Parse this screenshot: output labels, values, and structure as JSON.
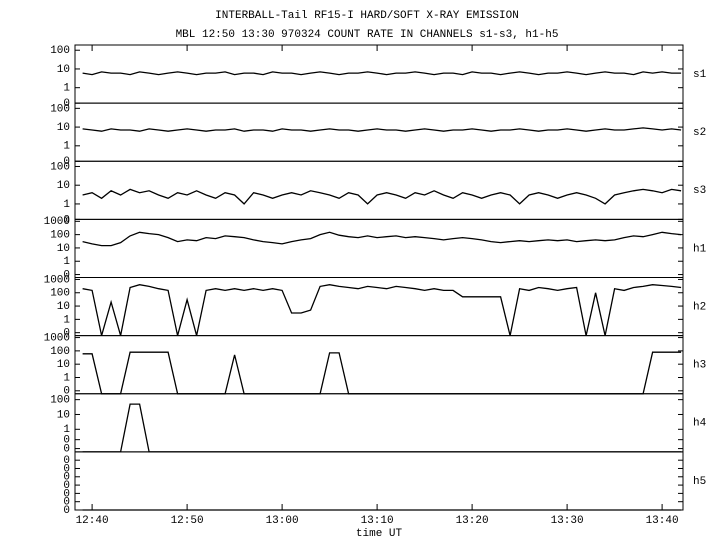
{
  "title": "INTERBALL-Tail RF15-I HARD/SOFT X-RAY EMISSION",
  "subtitle": "MBL 12:50 13:30 970324  COUNT RATE IN CHANNELS s1-s3, h1-h5",
  "x_axis": {
    "label": "time UT",
    "xlim": [
      758.2,
      822.2
    ],
    "xticks": [
      {
        "value": 760,
        "label": "12:40"
      },
      {
        "value": 770,
        "label": "12:50"
      },
      {
        "value": 780,
        "label": "13:00"
      },
      {
        "value": 790,
        "label": "13:10"
      },
      {
        "value": 800,
        "label": "13:20"
      },
      {
        "value": 810,
        "label": "13:30"
      },
      {
        "value": 820,
        "label": "13:40"
      }
    ],
    "x": [
      759,
      760,
      761,
      762,
      763,
      764,
      765,
      766,
      767,
      768,
      769,
      770,
      771,
      772,
      773,
      774,
      775,
      776,
      777,
      778,
      779,
      780,
      781,
      782,
      783,
      784,
      785,
      786,
      787,
      788,
      789,
      790,
      791,
      792,
      793,
      794,
      795,
      796,
      797,
      798,
      799,
      800,
      801,
      802,
      803,
      804,
      805,
      806,
      807,
      808,
      809,
      810,
      811,
      812,
      813,
      814,
      815,
      816,
      817,
      818,
      819,
      820,
      821,
      822
    ]
  },
  "chart_data": [
    {
      "type": "line",
      "log": true,
      "ylim": [
        0.15,
        190
      ],
      "yticks": [
        100,
        10,
        1,
        {
          "value": 0.15,
          "label": "0"
        }
      ],
      "series": [
        {
          "name": "s1",
          "color": "#000000",
          "values": [
            6,
            5,
            7,
            6,
            6,
            5,
            7,
            6,
            5,
            6,
            7,
            6,
            5,
            6,
            6,
            7,
            5,
            6,
            6,
            5,
            7,
            6,
            6,
            5,
            6,
            7,
            6,
            5,
            6,
            6,
            7,
            6,
            5,
            6,
            6,
            7,
            6,
            5,
            6,
            6,
            5,
            7,
            6,
            6,
            5,
            6,
            7,
            6,
            5,
            6,
            6,
            7,
            6,
            5,
            6,
            7,
            6,
            6,
            5,
            7,
            6,
            7,
            6,
            6
          ]
        }
      ]
    },
    {
      "type": "line",
      "log": true,
      "ylim": [
        0.15,
        190
      ],
      "yticks": [
        100,
        10,
        1,
        {
          "value": 0.15,
          "label": "0"
        }
      ],
      "series": [
        {
          "name": "s2",
          "color": "#000000",
          "values": [
            8,
            7,
            6,
            8,
            7,
            7,
            6,
            8,
            7,
            6,
            7,
            8,
            7,
            6,
            7,
            7,
            8,
            6,
            7,
            7,
            6,
            8,
            7,
            7,
            6,
            7,
            8,
            7,
            7,
            6,
            7,
            8,
            7,
            7,
            6,
            7,
            8,
            7,
            6,
            7,
            7,
            8,
            7,
            6,
            7,
            7,
            8,
            7,
            6,
            7,
            7,
            8,
            7,
            6,
            7,
            8,
            7,
            7,
            8,
            9,
            8,
            7,
            8,
            7
          ]
        }
      ]
    },
    {
      "type": "line",
      "log": true,
      "ylim": [
        0.15,
        190
      ],
      "yticks": [
        100,
        10,
        1,
        {
          "value": 0.15,
          "label": "0"
        }
      ],
      "series": [
        {
          "name": "s3",
          "color": "#000000",
          "values": [
            3,
            4,
            2,
            5,
            3,
            6,
            4,
            5,
            3,
            2,
            4,
            3,
            5,
            3,
            2,
            4,
            3,
            1,
            4,
            3,
            2,
            3,
            4,
            3,
            5,
            4,
            3,
            2,
            4,
            3,
            1,
            3,
            4,
            3,
            2,
            4,
            3,
            5,
            3,
            2,
            4,
            3,
            2,
            3,
            4,
            3,
            1,
            3,
            4,
            3,
            2,
            3,
            4,
            3,
            2,
            1,
            3,
            4,
            5,
            6,
            5,
            4,
            6,
            5
          ]
        }
      ]
    },
    {
      "type": "line",
      "log": true,
      "ylim": [
        0.06,
        1400
      ],
      "yticks": [
        1000,
        100,
        10,
        1,
        {
          "value": 0.1,
          "label": "0"
        }
      ],
      "series": [
        {
          "name": "h1",
          "color": "#000000",
          "values": [
            30,
            20,
            15,
            15,
            25,
            80,
            150,
            120,
            100,
            60,
            30,
            40,
            35,
            60,
            50,
            80,
            70,
            60,
            40,
            30,
            25,
            20,
            30,
            40,
            50,
            100,
            150,
            90,
            70,
            60,
            80,
            60,
            70,
            80,
            60,
            70,
            60,
            50,
            40,
            50,
            60,
            50,
            40,
            30,
            25,
            30,
            35,
            30,
            35,
            40,
            35,
            40,
            30,
            35,
            40,
            35,
            40,
            60,
            80,
            70,
            100,
            150,
            120,
            100
          ]
        }
      ]
    },
    {
      "type": "line",
      "log": true,
      "ylim": [
        0.06,
        1400
      ],
      "yticks": [
        1000,
        100,
        10,
        1,
        {
          "value": 0.1,
          "label": "0"
        }
      ],
      "series": [
        {
          "name": "h2",
          "color": "#000000",
          "values": [
            200,
            150,
            0,
            20,
            0,
            250,
            400,
            300,
            200,
            150,
            0,
            30,
            0,
            150,
            200,
            150,
            200,
            150,
            200,
            150,
            200,
            150,
            3,
            3,
            5,
            300,
            400,
            300,
            250,
            200,
            300,
            250,
            200,
            300,
            250,
            200,
            150,
            200,
            150,
            150,
            50,
            50,
            50,
            50,
            50,
            0,
            200,
            150,
            250,
            200,
            150,
            200,
            250,
            0,
            100,
            0,
            200,
            150,
            250,
            300,
            400,
            350,
            300,
            250
          ]
        }
      ]
    },
    {
      "type": "line",
      "log": true,
      "ylim": [
        0.06,
        1400
      ],
      "yticks": [
        1000,
        100,
        10,
        1,
        {
          "value": 0.1,
          "label": "0"
        }
      ],
      "series": [
        {
          "name": "h3",
          "color": "#000000",
          "values": [
            60,
            60,
            0,
            0,
            0,
            80,
            80,
            80,
            80,
            80,
            0,
            0,
            0,
            0,
            0,
            0,
            50,
            0,
            0,
            0,
            0,
            0,
            0,
            0,
            0,
            0,
            70,
            70,
            0,
            0,
            0,
            0,
            0,
            0,
            0,
            0,
            0,
            0,
            0,
            0,
            0,
            0,
            0,
            0,
            0,
            0,
            0,
            0,
            0,
            0,
            0,
            0,
            0,
            0,
            0,
            0,
            0,
            0,
            0,
            0,
            80,
            80,
            80,
            80
          ]
        }
      ]
    },
    {
      "type": "line",
      "log": true,
      "ylim": [
        0.03,
        250
      ],
      "yticks": [
        100,
        10,
        1,
        {
          "value": 0.2,
          "label": "0"
        },
        {
          "value": 0.05,
          "label": "0"
        }
      ],
      "series": [
        {
          "name": "h4",
          "color": "#000000",
          "values": [
            0,
            0,
            0,
            0,
            0,
            50,
            50,
            0,
            0,
            0,
            0,
            0,
            0,
            0,
            0,
            0,
            0,
            0,
            0,
            0,
            0,
            0,
            0,
            0,
            0,
            0,
            0,
            0,
            0,
            0,
            0,
            0,
            0,
            0,
            0,
            0,
            0,
            0,
            0,
            0,
            0,
            0,
            0,
            0,
            0,
            0,
            0,
            0,
            0,
            0,
            0,
            0,
            0,
            0,
            0,
            0,
            0,
            0,
            0,
            0,
            0,
            0,
            0,
            0
          ]
        }
      ]
    },
    {
      "type": "line",
      "log": false,
      "ylim": [
        0,
        7e-07
      ],
      "yticks": [
        {
          "value": 6e-07,
          "label": "0"
        },
        {
          "value": 5e-07,
          "label": "0"
        },
        {
          "value": 4e-07,
          "label": "0"
        },
        {
          "value": 3e-07,
          "label": "0"
        },
        {
          "value": 2e-07,
          "label": "0"
        },
        {
          "value": 1e-07,
          "label": "0"
        },
        0
      ],
      "series": [
        {
          "name": "h5",
          "color": "#000000",
          "values": [
            0,
            0,
            0,
            0,
            0,
            0,
            0,
            0,
            0,
            0,
            0,
            0,
            0,
            0,
            0,
            0,
            0,
            0,
            0,
            0,
            0,
            0,
            0,
            0,
            0,
            0,
            0,
            0,
            0,
            0,
            0,
            0,
            0,
            0,
            0,
            0,
            0,
            0,
            0,
            0,
            0,
            0,
            0,
            0,
            0,
            0,
            0,
            0,
            0,
            0,
            0,
            0,
            0,
            0,
            0,
            0,
            0,
            0,
            0,
            0,
            0,
            0,
            0,
            0
          ]
        }
      ]
    }
  ]
}
